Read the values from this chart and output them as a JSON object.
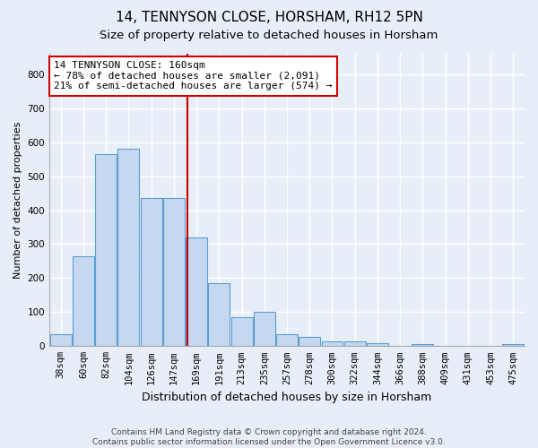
{
  "title1": "14, TENNYSON CLOSE, HORSHAM, RH12 5PN",
  "title2": "Size of property relative to detached houses in Horsham",
  "xlabel": "Distribution of detached houses by size in Horsham",
  "ylabel": "Number of detached properties",
  "categories": [
    "38sqm",
    "60sqm",
    "82sqm",
    "104sqm",
    "126sqm",
    "147sqm",
    "169sqm",
    "191sqm",
    "213sqm",
    "235sqm",
    "257sqm",
    "278sqm",
    "300sqm",
    "322sqm",
    "344sqm",
    "366sqm",
    "388sqm",
    "409sqm",
    "431sqm",
    "453sqm",
    "475sqm"
  ],
  "values": [
    35,
    265,
    565,
    580,
    435,
    435,
    320,
    185,
    85,
    100,
    35,
    27,
    14,
    14,
    10,
    0,
    5,
    0,
    0,
    0,
    7
  ],
  "bar_color": "#c5d8f0",
  "bar_edge_color": "#5a9fd4",
  "vline_color": "#cc0000",
  "annotation_line1": "14 TENNYSON CLOSE: 160sqm",
  "annotation_line2": "← 78% of detached houses are smaller (2,091)",
  "annotation_line3": "21% of semi-detached houses are larger (574) →",
  "annotation_box_color": "white",
  "annotation_box_edge": "#cc0000",
  "ylim": [
    0,
    860
  ],
  "yticks": [
    0,
    100,
    200,
    300,
    400,
    500,
    600,
    700,
    800
  ],
  "background_color": "#e8eef8",
  "grid_color": "#ffffff",
  "footnote": "Contains HM Land Registry data © Crown copyright and database right 2024.\nContains public sector information licensed under the Open Government Licence v3.0.",
  "title1_fontsize": 11,
  "title2_fontsize": 9.5,
  "xlabel_fontsize": 9,
  "ylabel_fontsize": 8,
  "tick_fontsize": 7.5,
  "annotation_fontsize": 8,
  "footnote_fontsize": 6.5
}
